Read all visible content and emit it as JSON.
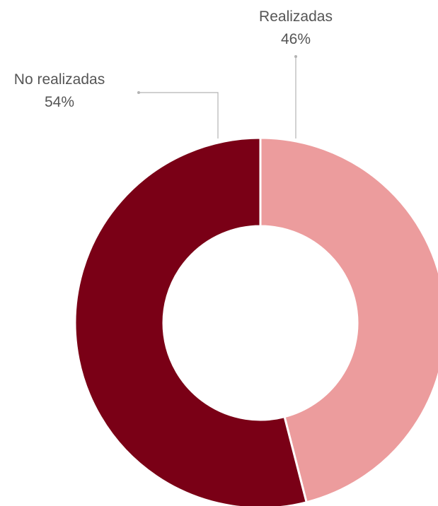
{
  "chart_data": {
    "type": "pie",
    "subtype": "donut",
    "categories": [
      "Realizadas",
      "No realizadas"
    ],
    "values": [
      46,
      54
    ],
    "value_labels": [
      "46%",
      "54%"
    ],
    "colors": [
      "#ec9c9d",
      "#7a0016"
    ],
    "legend": "none",
    "start_angle_deg": 0,
    "direction": "clockwise"
  }
}
